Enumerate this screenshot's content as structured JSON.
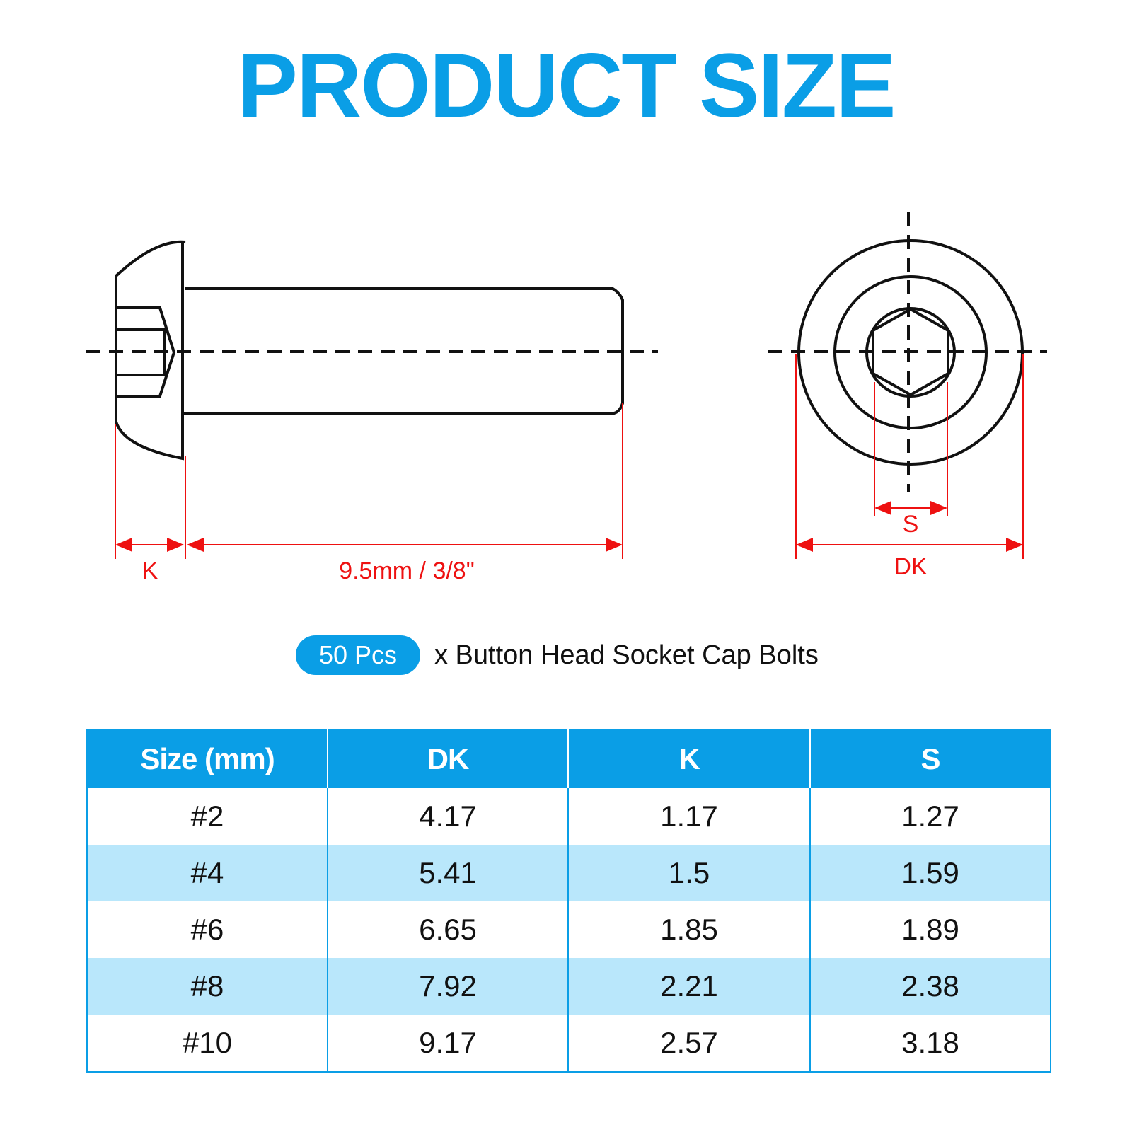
{
  "title": "PRODUCT SIZE",
  "dimensions": {
    "k_label": "K",
    "length_label": "9.5mm / 3/8\"",
    "s_label": "S",
    "dk_label": "DK"
  },
  "quantity": {
    "badge": "50 Pcs",
    "text": "x Button Head Socket Cap Bolts"
  },
  "table": {
    "headers": [
      "Size (mm)",
      "DK",
      "K",
      "S"
    ],
    "rows": [
      [
        "#2",
        "4.17",
        "1.17",
        "1.27"
      ],
      [
        "#4",
        "5.41",
        "1.5",
        "1.59"
      ],
      [
        "#6",
        "6.65",
        "1.85",
        "1.89"
      ],
      [
        "#8",
        "7.92",
        "2.21",
        "2.38"
      ],
      [
        "#10",
        "9.17",
        "2.57",
        "3.18"
      ]
    ]
  },
  "colors": {
    "accent": "#0a9ee6",
    "row_alt": "#b9e7fb",
    "dimension": "#ee1111"
  }
}
